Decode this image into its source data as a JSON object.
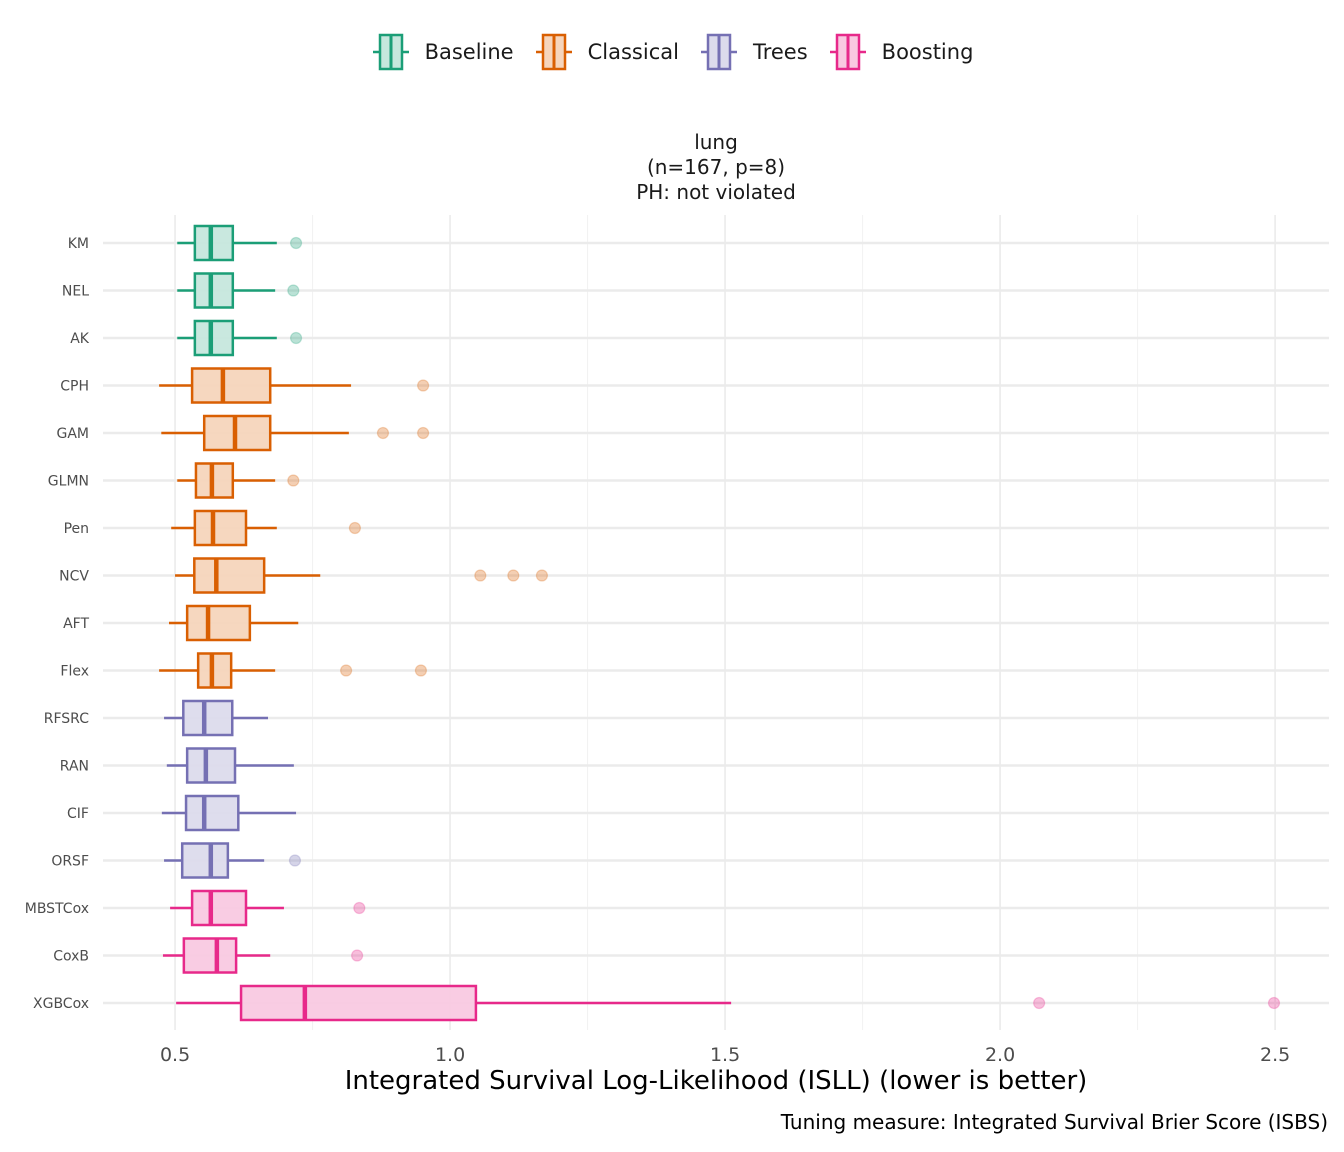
{
  "legend": {
    "items": [
      {
        "label": "Baseline",
        "color": "#1B9E77",
        "fill": "#C6E7DD"
      },
      {
        "label": "Classical",
        "color": "#D95F02",
        "fill": "#F6D5BC"
      },
      {
        "label": "Trees",
        "color": "#7570B3",
        "fill": "#DCDBEC"
      },
      {
        "label": "Boosting",
        "color": "#E7298A",
        "fill": "#F9C9E1"
      }
    ]
  },
  "strip": {
    "line1": "lung",
    "line2": "(n=167, p=8)",
    "line3": "PH: not violated"
  },
  "caption": "Tuning measure: Integrated Survival Brier Score (ISBS)",
  "chart_data": {
    "type": "boxplot",
    "orientation": "horizontal",
    "title": "lung (n=167, p=8) PH: not violated",
    "xlabel": "Integrated Survival Log-Likelihood (ISLL) (lower is better)",
    "ylabel": "",
    "xlim": [
      0.369,
      2.598
    ],
    "xticks": [
      0.5,
      1.0,
      1.5,
      2.0,
      2.5
    ],
    "xtick_labels": [
      "0.5",
      "1.0",
      "1.5",
      "2.0",
      "2.5"
    ],
    "minor_gridlines": [
      0.75,
      1.25,
      1.75,
      2.25
    ],
    "grid": true,
    "legend_position": "top",
    "categories": [
      "KM",
      "NEL",
      "AK",
      "CPH",
      "GAM",
      "GLMN",
      "Pen",
      "NCV",
      "AFT",
      "Flex",
      "RFSRC",
      "RAN",
      "CIF",
      "ORSF",
      "MBSTCox",
      "CoxB",
      "XGBCox"
    ],
    "series": [
      {
        "name": "KM",
        "group": "Baseline",
        "whisker_low": 0.504,
        "q1": 0.536,
        "median": 0.565,
        "q3": 0.605,
        "whisker_high": 0.685,
        "outliers": [
          0.72
        ]
      },
      {
        "name": "NEL",
        "group": "Baseline",
        "whisker_low": 0.504,
        "q1": 0.536,
        "median": 0.565,
        "q3": 0.605,
        "whisker_high": 0.682,
        "outliers": [
          0.715
        ]
      },
      {
        "name": "AK",
        "group": "Baseline",
        "whisker_low": 0.504,
        "q1": 0.536,
        "median": 0.565,
        "q3": 0.605,
        "whisker_high": 0.685,
        "outliers": [
          0.72
        ]
      },
      {
        "name": "CPH",
        "group": "Classical",
        "whisker_low": 0.471,
        "q1": 0.531,
        "median": 0.587,
        "q3": 0.673,
        "whisker_high": 0.82,
        "outliers": [
          0.951
        ]
      },
      {
        "name": "GAM",
        "group": "Classical",
        "whisker_low": 0.475,
        "q1": 0.553,
        "median": 0.609,
        "q3": 0.673,
        "whisker_high": 0.816,
        "outliers": [
          0.878,
          0.951
        ]
      },
      {
        "name": "GLMN",
        "group": "Classical",
        "whisker_low": 0.504,
        "q1": 0.538,
        "median": 0.567,
        "q3": 0.605,
        "whisker_high": 0.682,
        "outliers": [
          0.715
        ]
      },
      {
        "name": "Pen",
        "group": "Classical",
        "whisker_low": 0.493,
        "q1": 0.536,
        "median": 0.569,
        "q3": 0.629,
        "whisker_high": 0.685,
        "outliers": [
          0.827
        ]
      },
      {
        "name": "NCV",
        "group": "Classical",
        "whisker_low": 0.5,
        "q1": 0.535,
        "median": 0.575,
        "q3": 0.662,
        "whisker_high": 0.764,
        "outliers": [
          1.055,
          1.115,
          1.167
        ]
      },
      {
        "name": "AFT",
        "group": "Classical",
        "whisker_low": 0.489,
        "q1": 0.522,
        "median": 0.56,
        "q3": 0.636,
        "whisker_high": 0.724,
        "outliers": []
      },
      {
        "name": "Flex",
        "group": "Classical",
        "whisker_low": 0.471,
        "q1": 0.542,
        "median": 0.567,
        "q3": 0.602,
        "whisker_high": 0.682,
        "outliers": [
          0.811,
          0.947
        ]
      },
      {
        "name": "RFSRC",
        "group": "Trees",
        "whisker_low": 0.48,
        "q1": 0.515,
        "median": 0.553,
        "q3": 0.604,
        "whisker_high": 0.669,
        "outliers": []
      },
      {
        "name": "RAN",
        "group": "Trees",
        "whisker_low": 0.485,
        "q1": 0.522,
        "median": 0.556,
        "q3": 0.609,
        "whisker_high": 0.716,
        "outliers": []
      },
      {
        "name": "CIF",
        "group": "Trees",
        "whisker_low": 0.476,
        "q1": 0.52,
        "median": 0.553,
        "q3": 0.615,
        "whisker_high": 0.72,
        "outliers": []
      },
      {
        "name": "ORSF",
        "group": "Trees",
        "whisker_low": 0.48,
        "q1": 0.513,
        "median": 0.565,
        "q3": 0.596,
        "whisker_high": 0.662,
        "outliers": [
          0.718
        ]
      },
      {
        "name": "MBSTCox",
        "group": "Boosting",
        "whisker_low": 0.491,
        "q1": 0.531,
        "median": 0.565,
        "q3": 0.629,
        "whisker_high": 0.698,
        "outliers": [
          0.835
        ]
      },
      {
        "name": "CoxB",
        "group": "Boosting",
        "whisker_low": 0.478,
        "q1": 0.516,
        "median": 0.576,
        "q3": 0.611,
        "whisker_high": 0.673,
        "outliers": [
          0.831
        ]
      },
      {
        "name": "XGBCox",
        "group": "Boosting",
        "whisker_low": 0.502,
        "q1": 0.62,
        "median": 0.736,
        "q3": 1.047,
        "whisker_high": 1.511,
        "outliers": [
          2.071,
          2.498
        ]
      }
    ]
  }
}
